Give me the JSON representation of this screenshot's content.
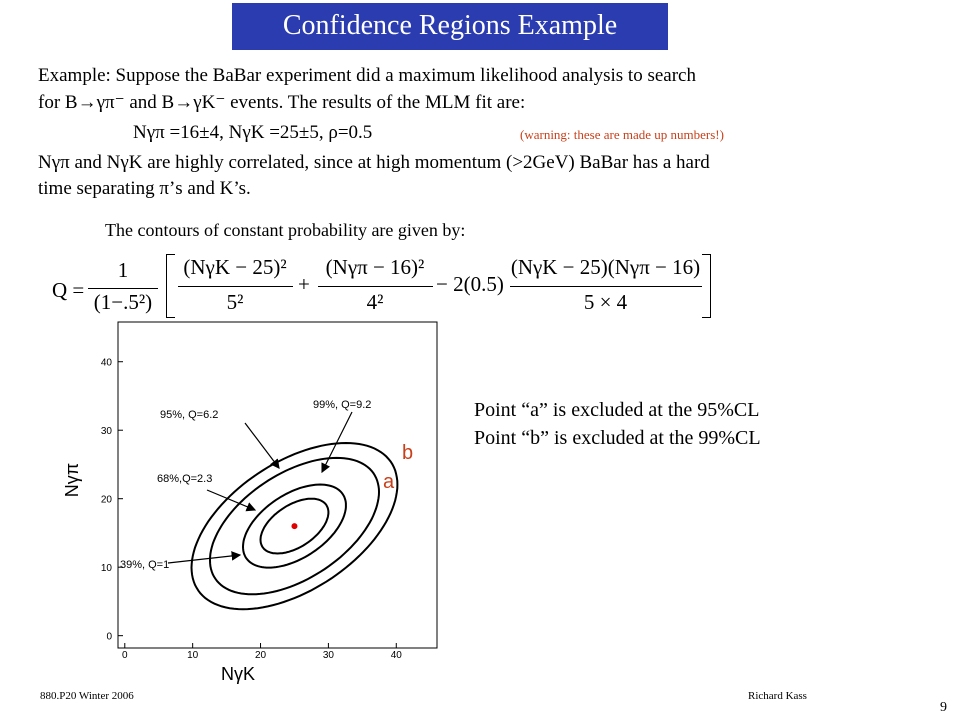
{
  "header": {
    "title": "Confidence Regions Example"
  },
  "body": {
    "lines": [
      "Example: Suppose the  BaBar experiment did a maximum likelihood analysis to search",
      "for  B→γπ⁻ and B→γK⁻ events. The results of the MLM fit are:",
      "Nγπ =16±4,  NγK =25±5,  ρ=0.5",
      "Nγπ and NγK are highly correlated, since at high momentum (>2GeV) BaBar has a hard",
      "time separating π’s and K’s.",
      "The contours of constant probability are given by:"
    ],
    "warning": "(warning: these are made up numbers!)"
  },
  "formula": {
    "lhs": "Q =",
    "one": "1",
    "den": "(1−.5²)",
    "t1n": "(NγK − 25)²",
    "t1d": "5²",
    "plus": "+",
    "t2n": "(Nγπ − 16)²",
    "t2d": "4²",
    "minus": "− 2(0.5)",
    "t3n": "(NγK − 25)(Nγπ − 16)",
    "t3d": "5 × 4"
  },
  "plot": {
    "xlabel": "NγK",
    "ylabel": "Nγπ",
    "xlim": [
      -1,
      46
    ],
    "ylim": [
      -1.8,
      45.8
    ],
    "xticks": [
      0,
      10,
      20,
      30,
      40
    ],
    "yticks": [
      0,
      10,
      20,
      30,
      40
    ],
    "fit": {
      "mean_k": 25,
      "sigma_k": 5,
      "mean_pi": 16,
      "sigma_pi": 4,
      "rho": 0.5
    },
    "contours": [
      {
        "label": "39%, Q=1",
        "q": 1
      },
      {
        "label": "68%,Q=2.3",
        "q": 2.3
      },
      {
        "label": "95%, Q=6.2",
        "q": 6.2
      },
      {
        "label": "99%, Q=9.2",
        "q": 9.2
      }
    ],
    "points": [
      "a",
      "b"
    ]
  },
  "conclusions": [
    "Point “a” is excluded at the 95%CL",
    "Point “b” is excluded at the 99%CL"
  ],
  "footer": {
    "course": "880.P20 Winter 2006",
    "author": "Richard Kass",
    "page": "9"
  }
}
